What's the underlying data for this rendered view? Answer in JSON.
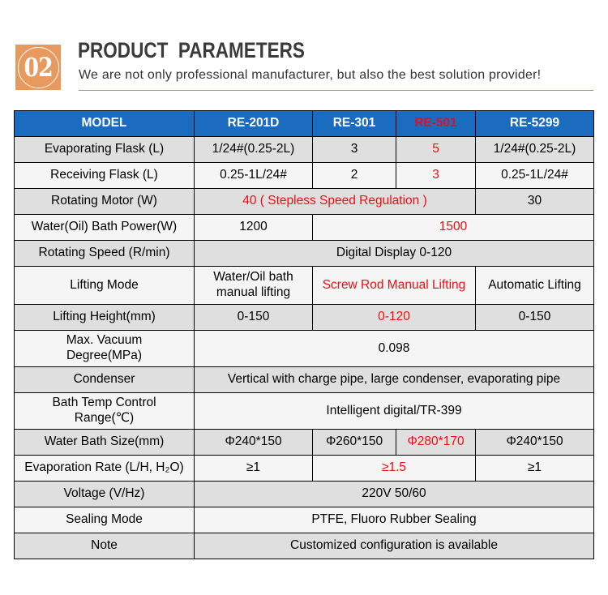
{
  "header": {
    "badge_number": "02",
    "badge_color": "#e89a5e",
    "title": "PRODUCT  PARAMETERS",
    "subtitle": "We are not only professional manufacturer, but also the best solution provider!",
    "divider_color": "#e8823c"
  },
  "colors": {
    "table_header_bg": "#1b6cbe",
    "table_header_text": "#ffffff",
    "highlight_red": "#f2101f",
    "header_red": "#d9112a",
    "row_gray": "#dfdfdf",
    "row_light": "#f5f5f5",
    "border": "#000000"
  },
  "table": {
    "columns": [
      {
        "label": "MODEL",
        "red": false
      },
      {
        "label": "RE-201D",
        "red": false
      },
      {
        "label": "RE-301",
        "red": false
      },
      {
        "label": "RE-501",
        "red": true
      },
      {
        "label": "RE-5299",
        "red": false
      }
    ],
    "rows": [
      {
        "label": "Evaporating Flask (L)",
        "cells": [
          {
            "text": "1/24#(0.25-2L)"
          },
          {
            "text": "3"
          },
          {
            "text": "5",
            "red": true
          },
          {
            "text": "1/24#(0.25-2L)"
          }
        ]
      },
      {
        "label": "Receiving Flask (L)",
        "cells": [
          {
            "text": "0.25-1L/24#"
          },
          {
            "text": "2"
          },
          {
            "text": "3",
            "red": true
          },
          {
            "text": "0.25-1L/24#"
          }
        ]
      },
      {
        "label": "Rotating Motor (W)",
        "cells": [
          {
            "text": "40 ( Stepless Speed Regulation )",
            "span": 3,
            "red": true
          },
          {
            "text": "30"
          }
        ]
      },
      {
        "label": "Water(Oil) Bath Power(W)",
        "cells": [
          {
            "text": "1200"
          },
          {
            "text": "1500",
            "span": 3,
            "red": true
          }
        ]
      },
      {
        "label": "Rotating Speed (R/min)",
        "cells": [
          {
            "text": "Digital Display 0-120",
            "span": 4
          }
        ]
      },
      {
        "label": "Lifting Mode",
        "cells": [
          {
            "text": "Water/Oil bath\nmanual lifting"
          },
          {
            "text": "Screw Rod Manual Lifting",
            "span": 2,
            "red": true
          },
          {
            "text": "Automatic Lifting"
          }
        ]
      },
      {
        "label": "Lifting Height(mm)",
        "cells": [
          {
            "text": "0-150"
          },
          {
            "text": "0-120",
            "span": 2,
            "red": true
          },
          {
            "text": "0-150"
          }
        ]
      },
      {
        "label": "Max. Vacuum\nDegree(MPa)",
        "cells": [
          {
            "text": "0.098",
            "span": 4
          }
        ]
      },
      {
        "label": "Condenser",
        "cells": [
          {
            "text": "Vertical with charge pipe, large condenser, evaporating pipe",
            "span": 4
          }
        ]
      },
      {
        "label": "Bath Temp Control\nRange(℃)",
        "cells": [
          {
            "text": "Intelligent digital/TR-399",
            "span": 4
          }
        ]
      },
      {
        "label": "Water Bath Size(mm)",
        "cells": [
          {
            "text": "Φ240*150"
          },
          {
            "text": "Φ260*150"
          },
          {
            "text": "Φ280*170",
            "red": true
          },
          {
            "text": "Φ240*150"
          }
        ]
      },
      {
        "label": "Evaporation Rate (L/H, H₂O)",
        "cells": [
          {
            "text": "≥1"
          },
          {
            "text": "≥1.5",
            "span": 2,
            "red": true
          },
          {
            "text": "≥1"
          }
        ]
      },
      {
        "label": "Voltage (V/Hz)",
        "cells": [
          {
            "text": "220V 50/60",
            "span": 4
          }
        ]
      },
      {
        "label": "Sealing Mode",
        "cells": [
          {
            "text": "PTFE, Fluoro Rubber Sealing",
            "span": 4
          }
        ]
      },
      {
        "label": "Note",
        "cells": [
          {
            "text": "Customized configuration is available",
            "span": 4
          }
        ]
      }
    ]
  }
}
